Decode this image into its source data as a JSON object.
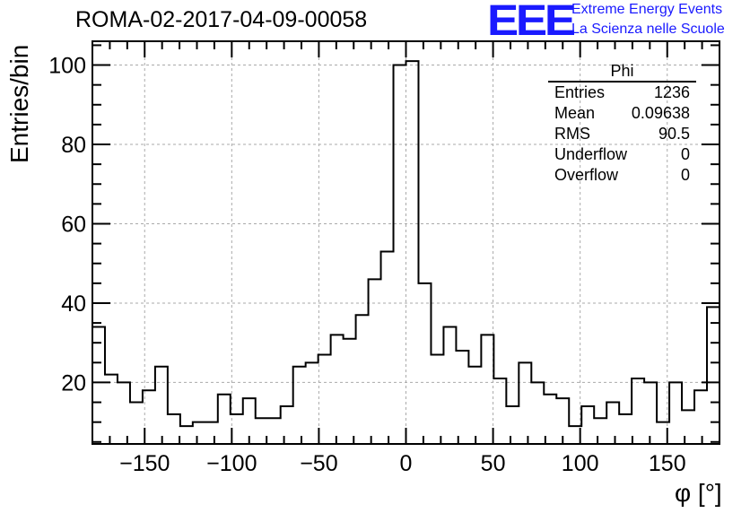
{
  "title": "ROMA-02-2017-04-09-00058",
  "logo": {
    "mark": "EEE",
    "line1": "Extreme Energy Events",
    "line2": "La Scienza nelle Scuole",
    "color": "#1a1aff"
  },
  "stats": {
    "title": "Phi",
    "rows": [
      {
        "label": "Entries",
        "value": "1236"
      },
      {
        "label": "Mean",
        "value": "0.09638"
      },
      {
        "label": "RMS",
        "value": "90.5"
      },
      {
        "label": "Underflow",
        "value": "0"
      },
      {
        "label": "Overflow",
        "value": "0"
      }
    ]
  },
  "chart_data": {
    "type": "histogram",
    "xlabel": "φ [°]",
    "ylabel": "Entries/bin",
    "xlim": [
      -180,
      180
    ],
    "ylim": [
      4.5,
      106
    ],
    "xticks": [
      -150,
      -100,
      -50,
      0,
      50,
      100,
      150
    ],
    "yticks": [
      20,
      40,
      60,
      80,
      100
    ],
    "grid": true,
    "bin_width": 7.2,
    "bin_edges_start": -180,
    "values": [
      34,
      22,
      20,
      15,
      18,
      24,
      12,
      9,
      10,
      10,
      17,
      12,
      16,
      11,
      11,
      14,
      24,
      25,
      27,
      32,
      31,
      37,
      46,
      53,
      100,
      101,
      45,
      27,
      34,
      28,
      24,
      32,
      21,
      14,
      25,
      20,
      17,
      16,
      9,
      14,
      11,
      15,
      12,
      21,
      20,
      10,
      20,
      13,
      18,
      39
    ]
  }
}
